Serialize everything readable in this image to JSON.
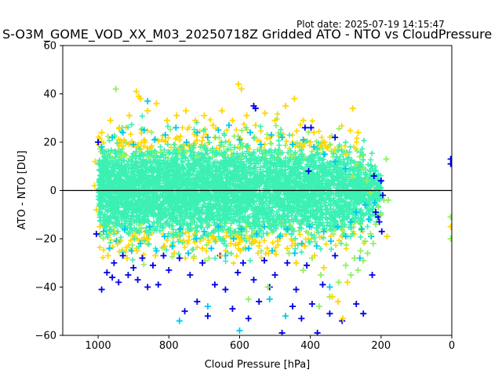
{
  "plot_date": "Plot date: 2025-07-19 14:15:47",
  "chart_data": {
    "type": "scatter",
    "title": "S-O3M_GOME_VOD_XX_M03_20250718Z Gridded ATO - NTO vs CloudPressure",
    "xlabel": "Cloud Pressure [hPa]",
    "ylabel": "ATO - NTO [DU]",
    "xlim": [
      1100,
      0
    ],
    "ylim": [
      -60,
      60
    ],
    "x_inverted": true,
    "xticks": [
      1000,
      800,
      600,
      400,
      200,
      0
    ],
    "yticks": [
      -60,
      -40,
      -20,
      0,
      20,
      40,
      60
    ],
    "reference_line_y": 0,
    "grid": false,
    "marker": "plus",
    "colors": {
      "cyan_green": "#3cf0b4",
      "light_green": "#90f060",
      "yellow": "#ffd700",
      "cyan": "#00c8f0",
      "blue": "#0000e6"
    },
    "series": [
      {
        "color": "blue",
        "points": [
          [
            990,
            -41
          ],
          [
            975,
            -34
          ],
          [
            960,
            -36
          ],
          [
            955,
            -30
          ],
          [
            942,
            -38
          ],
          [
            930,
            -27
          ],
          [
            915,
            -35
          ],
          [
            900,
            -32
          ],
          [
            888,
            -37
          ],
          [
            875,
            -28
          ],
          [
            860,
            -40
          ],
          [
            845,
            -31
          ],
          [
            830,
            -39
          ],
          [
            815,
            -27
          ],
          [
            800,
            -33
          ],
          [
            770,
            -28
          ],
          [
            755,
            -50
          ],
          [
            740,
            -35
          ],
          [
            720,
            -46
          ],
          [
            705,
            -30
          ],
          [
            690,
            -52
          ],
          [
            670,
            -39
          ],
          [
            655,
            -27
          ],
          [
            640,
            -41
          ],
          [
            620,
            -49
          ],
          [
            605,
            -34
          ],
          [
            590,
            -30
          ],
          [
            575,
            -53
          ],
          [
            560,
            -37
          ],
          [
            545,
            -46
          ],
          [
            530,
            -29
          ],
          [
            515,
            -40
          ],
          [
            500,
            -35
          ],
          [
            480,
            -59
          ],
          [
            465,
            -30
          ],
          [
            450,
            -48
          ],
          [
            440,
            -41
          ],
          [
            425,
            -53
          ],
          [
            410,
            -31
          ],
          [
            395,
            -47
          ],
          [
            380,
            -59
          ],
          [
            365,
            -39
          ],
          [
            345,
            -51
          ],
          [
            330,
            -27
          ],
          [
            310,
            -54
          ],
          [
            270,
            -47
          ],
          [
            250,
            -51
          ],
          [
            225,
            -35
          ],
          [
            215,
            -9
          ],
          [
            208,
            -11
          ],
          [
            220,
            6
          ],
          [
            198,
            -17
          ],
          [
            205,
            -13
          ],
          [
            195,
            -2
          ],
          [
            200,
            4
          ],
          [
            415,
            26
          ],
          [
            398,
            26
          ],
          [
            330,
            22
          ],
          [
            560,
            35
          ],
          [
            555,
            34
          ],
          [
            405,
            8
          ],
          [
            1000,
            20
          ],
          [
            1005,
            -18
          ],
          [
            3,
            11
          ],
          [
            3,
            13
          ]
        ]
      },
      {
        "color": "cyan",
        "points": [
          [
            985,
            -17
          ],
          [
            968,
            -24
          ],
          [
            948,
            -21
          ],
          [
            925,
            -16
          ],
          [
            905,
            -25
          ],
          [
            880,
            -22
          ],
          [
            855,
            -15
          ],
          [
            835,
            -25
          ],
          [
            812,
            -19
          ],
          [
            790,
            -23
          ],
          [
            768,
            -16
          ],
          [
            745,
            -26
          ],
          [
            722,
            -20
          ],
          [
            700,
            -17
          ],
          [
            680,
            -24
          ],
          [
            660,
            -15
          ],
          [
            640,
            -27
          ],
          [
            617,
            -20
          ],
          [
            595,
            -16
          ],
          [
            574,
            -24
          ],
          [
            552,
            -18
          ],
          [
            530,
            -15
          ],
          [
            508,
            -25
          ],
          [
            486,
            -19
          ],
          [
            465,
            -16
          ],
          [
            444,
            -26
          ],
          [
            424,
            -22
          ],
          [
            402,
            -15
          ],
          [
            382,
            -23
          ],
          [
            362,
            -17
          ],
          [
            342,
            -21
          ],
          [
            322,
            -15
          ],
          [
            300,
            -19
          ],
          [
            285,
            -13
          ],
          [
            270,
            -9
          ],
          [
            255,
            -16
          ],
          [
            245,
            -6
          ],
          [
            235,
            -12
          ],
          [
            228,
            -19
          ],
          [
            218,
            -5
          ],
          [
            990,
            18
          ],
          [
            960,
            22
          ],
          [
            930,
            24
          ],
          [
            900,
            19
          ],
          [
            870,
            25
          ],
          [
            840,
            21
          ],
          [
            810,
            23
          ],
          [
            780,
            26
          ],
          [
            750,
            20
          ],
          [
            720,
            24
          ],
          [
            690,
            22
          ],
          [
            660,
            25
          ],
          [
            630,
            27
          ],
          [
            600,
            21
          ],
          [
            570,
            24
          ],
          [
            540,
            19
          ],
          [
            510,
            23
          ],
          [
            480,
            22
          ],
          [
            450,
            19
          ],
          [
            420,
            21
          ],
          [
            390,
            18
          ],
          [
            360,
            15
          ],
          [
            330,
            12
          ],
          [
            300,
            9
          ],
          [
            860,
            37
          ],
          [
            770,
            -54
          ],
          [
            690,
            -48
          ],
          [
            600,
            -58
          ],
          [
            515,
            -45
          ],
          [
            470,
            -52
          ],
          [
            345,
            -40
          ],
          [
            260,
            -28
          ]
        ]
      },
      {
        "color": "light_green",
        "points": [
          [
            300,
            -31
          ],
          [
            285,
            -35
          ],
          [
            275,
            -28
          ],
          [
            265,
            -33
          ],
          [
            258,
            -25
          ],
          [
            250,
            -29
          ],
          [
            245,
            -21
          ],
          [
            238,
            -26
          ],
          [
            230,
            -18
          ],
          [
            222,
            -22
          ],
          [
            215,
            -14
          ],
          [
            208,
            -7
          ],
          [
            200,
            -10
          ],
          [
            192,
            -4
          ],
          [
            185,
            13
          ],
          [
            250,
            9
          ],
          [
            260,
            14
          ],
          [
            270,
            11
          ],
          [
            280,
            6
          ],
          [
            240,
            4
          ],
          [
            230,
            -1
          ],
          [
            320,
            -38
          ],
          [
            345,
            -44
          ],
          [
            375,
            -48
          ],
          [
            520,
            -40
          ],
          [
            575,
            -45
          ],
          [
            180,
            -4
          ],
          [
            3,
            -11
          ],
          [
            3,
            -20
          ],
          [
            950,
            42
          ],
          [
            460,
            -26
          ],
          [
            440,
            -30
          ],
          [
            420,
            -33
          ],
          [
            395,
            -28
          ],
          [
            370,
            -35
          ]
        ]
      },
      {
        "color": "yellow",
        "points": [
          [
            995,
            -15
          ],
          [
            972,
            -27
          ],
          [
            945,
            -22
          ],
          [
            918,
            -28
          ],
          [
            890,
            -25
          ],
          [
            862,
            -20
          ],
          [
            838,
            -27
          ],
          [
            812,
            -23
          ],
          [
            785,
            -26
          ],
          [
            758,
            -21
          ],
          [
            730,
            -28
          ],
          [
            705,
            -24
          ],
          [
            678,
            -19
          ],
          [
            652,
            -27
          ],
          [
            625,
            -22
          ],
          [
            598,
            -25
          ],
          [
            572,
            -20
          ],
          [
            545,
            -23
          ],
          [
            518,
            -26
          ],
          [
            492,
            -21
          ],
          [
            465,
            -24
          ],
          [
            440,
            -30
          ],
          [
            415,
            -23
          ],
          [
            388,
            -27
          ],
          [
            362,
            -32
          ],
          [
            338,
            -44
          ],
          [
            322,
            -46
          ],
          [
            308,
            -53
          ],
          [
            295,
            -38
          ],
          [
            1005,
            -8
          ],
          [
            1010,
            2
          ],
          [
            1008,
            12
          ],
          [
            990,
            24
          ],
          [
            965,
            29
          ],
          [
            940,
            26
          ],
          [
            912,
            31
          ],
          [
            885,
            39
          ],
          [
            860,
            33
          ],
          [
            835,
            36
          ],
          [
            805,
            29
          ],
          [
            778,
            31
          ],
          [
            752,
            33
          ],
          [
            725,
            29
          ],
          [
            700,
            31
          ],
          [
            675,
            27
          ],
          [
            650,
            33
          ],
          [
            620,
            29
          ],
          [
            603,
            44
          ],
          [
            595,
            42
          ],
          [
            580,
            31
          ],
          [
            555,
            27
          ],
          [
            528,
            32
          ],
          [
            500,
            29
          ],
          [
            470,
            35
          ],
          [
            445,
            38
          ],
          [
            420,
            29
          ],
          [
            390,
            24
          ],
          [
            360,
            20
          ],
          [
            330,
            17
          ],
          [
            300,
            15
          ],
          [
            280,
            34
          ],
          [
            265,
            24
          ],
          [
            183,
            -19
          ],
          [
            3,
            -15
          ],
          [
            892,
            41
          ],
          [
            880,
            38
          ]
        ]
      }
    ],
    "dense_cloud": {
      "color": "cyan_green",
      "x_range": [
        1000,
        200
      ],
      "y_center": 0,
      "approx_y_spread": [
        -30,
        30
      ]
    }
  }
}
